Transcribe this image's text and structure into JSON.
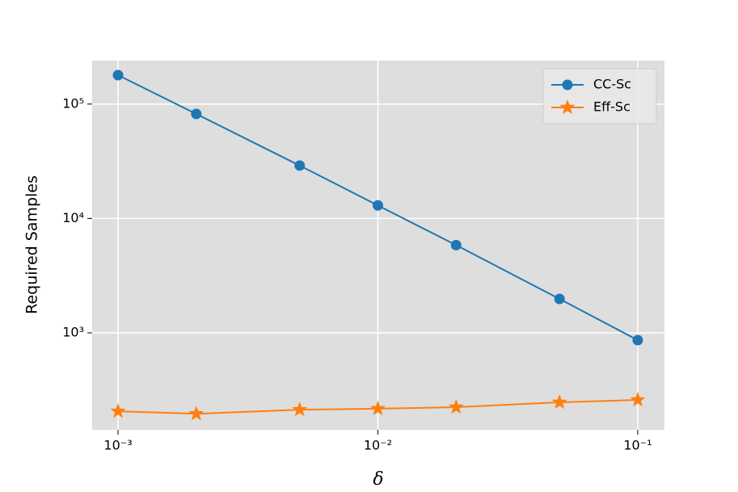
{
  "chart_data": {
    "type": "line",
    "x_label": "δ",
    "y_label": "Required Samples",
    "x": [
      0.001,
      0.002,
      0.005,
      0.01,
      0.02,
      0.05,
      0.1
    ],
    "series": [
      {
        "name": "CC-Sc",
        "color": "#1f77b4",
        "marker": "circle",
        "values": [
          179000,
          82000,
          29000,
          13000,
          5850,
          1980,
          863
        ]
      },
      {
        "name": "Eff-Sc",
        "color": "#ff7f0e",
        "marker": "star",
        "values": [
          206,
          196,
          213,
          217,
          224,
          247,
          259
        ]
      }
    ],
    "xscale": "log",
    "yscale": "log",
    "xlim": [
      0.000795,
      0.1267
    ],
    "ylim": [
      142,
      240000
    ],
    "xticks": [
      {
        "value": 0.001,
        "label": "10⁻³"
      },
      {
        "value": 0.01,
        "label": "10⁻²"
      },
      {
        "value": 0.1,
        "label": "10⁻¹"
      }
    ],
    "yticks": [
      {
        "value": 1000,
        "label": "10³"
      },
      {
        "value": 10000,
        "label": "10⁴"
      },
      {
        "value": 100000,
        "label": "10⁵"
      }
    ],
    "grid": true,
    "legend": "upper right"
  }
}
